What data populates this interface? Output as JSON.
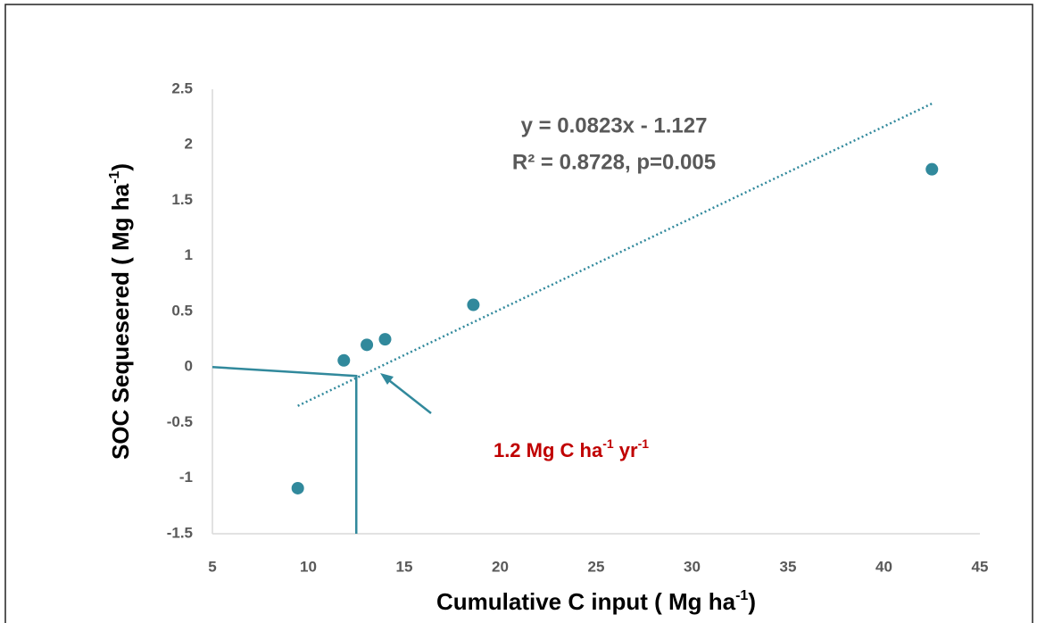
{
  "chart_data": {
    "type": "scatter",
    "x_label": [
      "Cumulative C input ( Mg ha",
      "-1",
      ")"
    ],
    "y_label": [
      "SOC Sequesered ( Mg ha",
      "-1",
      ")"
    ],
    "x": [
      9.45,
      11.85,
      13.05,
      14.0,
      18.6,
      42.5
    ],
    "values": [
      -1.09,
      0.06,
      0.2,
      0.25,
      0.56,
      1.78
    ],
    "color": "#31899c",
    "xlim": [
      5,
      45
    ],
    "xticks": [
      5,
      10,
      15,
      20,
      25,
      30,
      35,
      40,
      45
    ],
    "ylim": [
      -1.5,
      2.5
    ],
    "yticks": [
      -1.5,
      -1,
      -0.5,
      0,
      0.5,
      1,
      1.5,
      2,
      2.5
    ],
    "trendline": {
      "slope": 0.0823,
      "intercept": -1.127,
      "x_range": [
        9.45,
        42.5
      ]
    },
    "equation": [
      "y = 0.0823x - 1.127",
      "R² = 0.8728, p=0.005"
    ],
    "guide": {
      "x": [
        5,
        12.5,
        12.5
      ],
      "y": [
        0,
        -0.08,
        -1.5
      ]
    },
    "annotation": [
      "1.2 Mg C ha",
      "-1",
      " yr",
      "-1"
    ],
    "annotation_color": "#c00000"
  }
}
